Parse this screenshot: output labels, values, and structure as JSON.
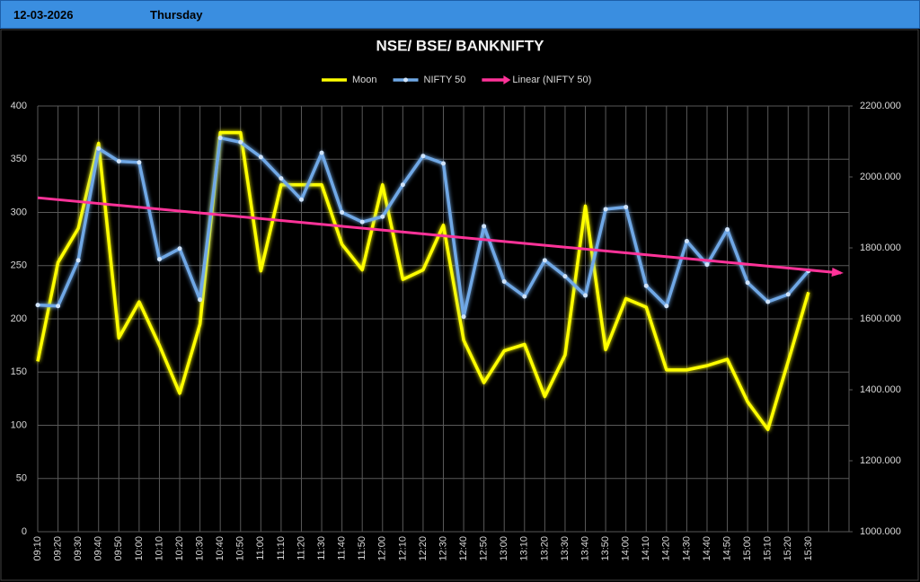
{
  "header": {
    "date": "12-03-2026",
    "day": "Thursday"
  },
  "chart_data": {
    "type": "line",
    "title": "NSE/ BSE/ BANKNIFTY",
    "categories": [
      "09:10",
      "09:20",
      "09:30",
      "09:40",
      "09:50",
      "10:00",
      "10:10",
      "10:20",
      "10:30",
      "10:40",
      "10:50",
      "11:00",
      "11:10",
      "11:20",
      "11:30",
      "11:40",
      "11:50",
      "12:00",
      "12:10",
      "12:20",
      "12:30",
      "12:40",
      "12:50",
      "13:00",
      "13:10",
      "13:20",
      "13:30",
      "13:40",
      "13:50",
      "14:00",
      "14:10",
      "14:20",
      "14:30",
      "14:40",
      "14:50",
      "15:00",
      "15:10",
      "15:20",
      "15:30",
      null
    ],
    "series": [
      {
        "name": "Moon",
        "color": "#ffff00",
        "axis": "y",
        "marker": false,
        "values": [
          160,
          253,
          285,
          365,
          182,
          216,
          175,
          130,
          195,
          375,
          375,
          245,
          326,
          326,
          326,
          270,
          246,
          326,
          237,
          246,
          288,
          180,
          140,
          170,
          176,
          127,
          166,
          306,
          171,
          219,
          211,
          152,
          152,
          156,
          162,
          122,
          96,
          160,
          225,
          null
        ]
      },
      {
        "name": "NIFTY 50",
        "color": "#6fa8e6",
        "axis": "y2",
        "marker": true,
        "values": [
          1639,
          1636,
          1765,
          2080,
          2044,
          2041,
          1768,
          1798,
          1654,
          2110,
          2098,
          2056,
          1996,
          1936,
          2068,
          1900,
          1873,
          1888,
          1978,
          2059,
          2038,
          1606,
          1861,
          1705,
          1663,
          1765,
          1720,
          1666,
          1909,
          1915,
          1693,
          1636,
          1819,
          1753,
          1852,
          1702,
          1648,
          1669,
          1735,
          null
        ]
      }
    ],
    "trendline": {
      "name": "Linear (NIFTY 50)",
      "color": "#ff3399",
      "of": 1
    },
    "ylim": [
      0,
      400
    ],
    "yticks": [
      0,
      50,
      100,
      150,
      200,
      250,
      300,
      350,
      400
    ],
    "y2lim": [
      1000,
      2200
    ],
    "y2ticks": [
      {
        "value": 1000,
        "label": "1000.000"
      },
      {
        "value": 1200,
        "label": "1200.000"
      },
      {
        "value": 1400,
        "label": "1400.000"
      },
      {
        "value": 1600,
        "label": "1600.000"
      },
      {
        "value": 1800,
        "label": "1800.000"
      },
      {
        "value": 2000,
        "label": "2000.000"
      },
      {
        "value": 2200,
        "label": "2200.000"
      }
    ],
    "grid": true,
    "legend": "top"
  }
}
